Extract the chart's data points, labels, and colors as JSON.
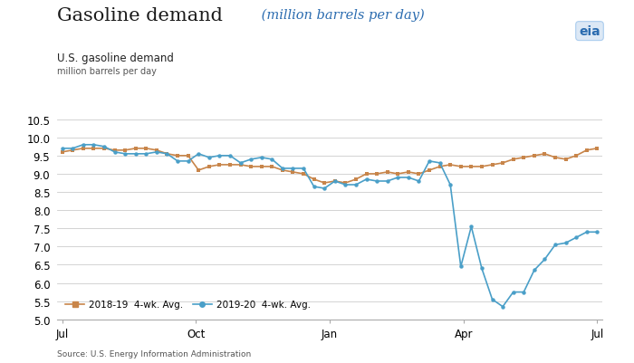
{
  "title_main": "Gasoline demand",
  "title_italic": " (million barrels per day)",
  "subtitle1": "U.S. gasoline demand",
  "subtitle2": "million barrels per day",
  "source": "Source: U.S. Energy Information Administration",
  "ylim": [
    5.0,
    10.5
  ],
  "yticks": [
    5.0,
    5.5,
    6.0,
    6.5,
    7.0,
    7.5,
    8.0,
    8.5,
    9.0,
    9.5,
    10.0,
    10.5
  ],
  "line1_label": "2018-19  4-wk. Avg.",
  "line2_label": "2019-20  4-wk. Avg.",
  "line1_color": "#C8854A",
  "line2_color": "#4A9FC8",
  "background_color": "#FFFFFF",
  "xtick_positions": [
    0,
    13,
    26,
    39,
    52
  ],
  "xtick_labels": [
    "Jul",
    "Oct",
    "Jan",
    "Apr",
    "Jul"
  ],
  "series1_values": [
    9.6,
    9.65,
    9.7,
    9.7,
    9.7,
    9.65,
    9.65,
    9.7,
    9.7,
    9.65,
    9.55,
    9.5,
    9.5,
    9.1,
    9.2,
    9.25,
    9.25,
    9.25,
    9.2,
    9.2,
    9.2,
    9.1,
    9.05,
    9.0,
    8.85,
    8.75,
    8.8,
    8.75,
    8.85,
    9.0,
    9.0,
    9.05,
    9.0,
    9.05,
    9.0,
    9.1,
    9.2,
    9.25,
    9.2,
    9.2,
    9.2,
    9.25,
    9.3,
    9.4,
    9.45,
    9.5,
    9.55,
    9.45,
    9.4,
    9.5,
    9.65,
    9.7
  ],
  "series2_values": [
    9.7,
    9.7,
    9.8,
    9.8,
    9.75,
    9.6,
    9.55,
    9.55,
    9.55,
    9.6,
    9.55,
    9.35,
    9.35,
    9.55,
    9.45,
    9.5,
    9.5,
    9.3,
    9.4,
    9.45,
    9.4,
    9.15,
    9.15,
    9.15,
    8.65,
    8.6,
    8.8,
    8.7,
    8.7,
    8.85,
    8.8,
    8.8,
    8.9,
    8.9,
    8.8,
    9.35,
    9.3,
    8.7,
    6.45,
    7.55,
    6.4,
    5.55,
    5.35,
    5.75,
    5.75,
    6.35,
    6.65,
    7.05,
    7.1,
    7.25,
    7.4,
    7.4
  ]
}
